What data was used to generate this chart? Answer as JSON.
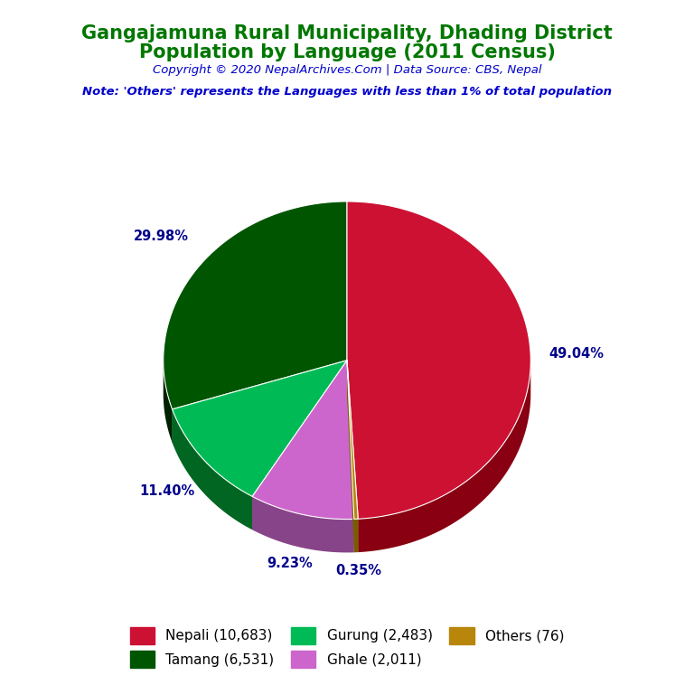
{
  "title_line1": "Gangajamuna Rural Municipality, Dhading District",
  "title_line2": "Population by Language (2011 Census)",
  "title_color": "#007700",
  "copyright_text": "Copyright © 2020 NepalArchives.Com | Data Source: CBS, Nepal",
  "copyright_color": "#0000CC",
  "note_text": "Note: 'Others' represents the Languages with less than 1% of total population",
  "note_color": "#0000CC",
  "slices": [
    {
      "label": "Nepali",
      "value": 10683,
      "pct": "49.04%",
      "color": "#CC1133",
      "dark": "#880011"
    },
    {
      "label": "Others",
      "value": 76,
      "pct": "0.35%",
      "color": "#B8860B",
      "dark": "#7A5C00"
    },
    {
      "label": "Ghale",
      "value": 2011,
      "pct": "9.23%",
      "color": "#CC66CC",
      "dark": "#884488"
    },
    {
      "label": "Gurung",
      "value": 2483,
      "pct": "11.40%",
      "color": "#00BB55",
      "dark": "#006622"
    },
    {
      "label": "Tamang",
      "value": 6531,
      "pct": "29.98%",
      "color": "#005500",
      "dark": "#002200"
    }
  ],
  "legend_entries": [
    {
      "label": "Nepali (10,683)",
      "color": "#CC1133"
    },
    {
      "label": "Tamang (6,531)",
      "color": "#005500"
    },
    {
      "label": "Gurung (2,483)",
      "color": "#00BB55"
    },
    {
      "label": "Ghale (2,011)",
      "color": "#CC66CC"
    },
    {
      "label": "Others (76)",
      "color": "#B8860B"
    }
  ],
  "background_color": "#FFFFFF",
  "label_color": "#00008B",
  "startangle_deg": 90
}
